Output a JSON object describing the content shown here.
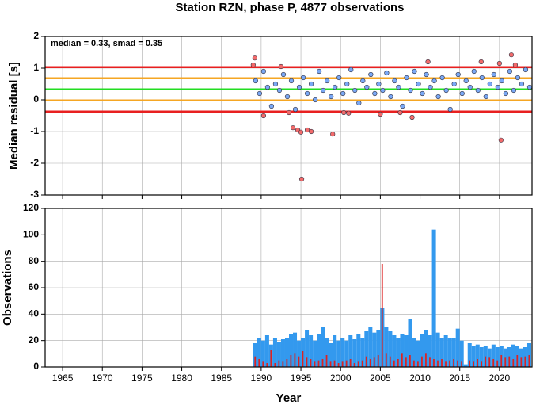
{
  "title": "Station RZN, phase P, 4877 observations",
  "chart_data": [
    {
      "type": "scatter",
      "ylabel": "Median residual [s]",
      "annotation": "median = 0.33, smad = 0.35",
      "xlim": [
        1962.8,
        2024.1
      ],
      "xticks": [
        1965,
        1970,
        1975,
        1980,
        1985,
        1990,
        1995,
        2000,
        2005,
        2010,
        2015,
        2020
      ],
      "ylim": [
        -3,
        2
      ],
      "yticks": [
        -3,
        -2,
        -1,
        0,
        1,
        2
      ],
      "grid": true,
      "reference_lines": [
        {
          "value": 1.03,
          "color": "#e82020"
        },
        {
          "value": -0.37,
          "color": "#e82020"
        },
        {
          "value": 0.68,
          "color": "#f5a623"
        },
        {
          "value": -0.02,
          "color": "#f5a623"
        },
        {
          "value": 0.33,
          "color": "#22dd22"
        }
      ],
      "series": [
        {
          "color": "#7aa8f5",
          "x": [
            1989.3,
            1989.8,
            1990.3,
            1990.8,
            1991.3,
            1991.8,
            1992.3,
            1992.8,
            1993.3,
            1993.8,
            1994.3,
            1994.8,
            1995.3,
            1995.8,
            1996.3,
            1996.8,
            1997.3,
            1997.8,
            1998.3,
            1998.8,
            1999.3,
            1999.8,
            2000.3,
            2000.8,
            2001.3,
            2001.8,
            2002.3,
            2002.8,
            2003.3,
            2003.8,
            2004.3,
            2004.8,
            2005.3,
            2005.8,
            2006.3,
            2006.8,
            2007.3,
            2007.8,
            2008.3,
            2008.8,
            2009.3,
            2009.8,
            2010.3,
            2010.8,
            2011.3,
            2011.8,
            2012.3,
            2012.8,
            2013.3,
            2013.8,
            2014.3,
            2014.8,
            2015.3,
            2015.8,
            2016.3,
            2016.8,
            2017.3,
            2017.8,
            2018.3,
            2018.8,
            2019.3,
            2019.8,
            2020.3,
            2020.8,
            2021.3,
            2021.8,
            2022.3,
            2022.8,
            2023.3,
            2023.8
          ],
          "values": [
            0.6,
            0.2,
            0.9,
            0.4,
            -0.2,
            0.5,
            0.3,
            0.8,
            0.1,
            0.6,
            -0.3,
            0.4,
            0.7,
            0.2,
            0.5,
            0.0,
            0.9,
            0.3,
            0.6,
            0.1,
            0.4,
            0.7,
            0.2,
            0.5,
            0.95,
            0.3,
            -0.1,
            0.6,
            0.4,
            0.8,
            0.2,
            0.5,
            0.3,
            0.85,
            0.1,
            0.6,
            0.4,
            -0.2,
            0.7,
            0.3,
            0.9,
            0.5,
            0.2,
            0.8,
            0.4,
            0.6,
            0.1,
            0.7,
            0.3,
            -0.3,
            0.5,
            0.8,
            0.2,
            0.6,
            0.4,
            0.9,
            0.3,
            0.7,
            0.1,
            0.5,
            0.8,
            0.4,
            0.6,
            0.2,
            0.9,
            0.3,
            0.7,
            0.5,
            0.95,
            0.4
          ]
        },
        {
          "color": "#f26b6b",
          "x": [
            1989.0,
            1989.2,
            1990.3,
            1992.5,
            1993.5,
            1994.0,
            1994.6,
            1995.0,
            1995.1,
            1995.8,
            1996.3,
            1999.0,
            2000.4,
            2001.0,
            2005.0,
            2007.5,
            2009.0,
            2011.0,
            2017.7,
            2020.0,
            2020.2,
            2021.5,
            2022.0
          ],
          "values": [
            1.1,
            1.32,
            -0.5,
            1.05,
            -0.4,
            -0.88,
            -0.95,
            -1.02,
            -2.5,
            -0.95,
            -1.0,
            -1.08,
            -0.4,
            -0.42,
            -0.45,
            -0.4,
            -0.55,
            1.2,
            1.2,
            1.15,
            -1.27,
            1.42,
            1.1
          ]
        }
      ]
    },
    {
      "type": "histogram",
      "ylabel": "Observations",
      "xlabel": "Year",
      "xlim": [
        1962.8,
        2024.1
      ],
      "xticks": [
        1965,
        1970,
        1975,
        1980,
        1985,
        1990,
        1995,
        2000,
        2005,
        2010,
        2015,
        2020
      ],
      "ylim": [
        0,
        120
      ],
      "yticks": [
        0,
        20,
        40,
        60,
        80,
        100,
        120
      ],
      "grid": true,
      "bins": [
        1989,
        1989.5,
        1990,
        1990.5,
        1991,
        1991.5,
        1992,
        1992.5,
        1993,
        1993.5,
        1994,
        1994.5,
        1995,
        1995.5,
        1996,
        1996.5,
        1997,
        1997.5,
        1998,
        1998.5,
        1999,
        1999.5,
        2000,
        2000.5,
        2001,
        2001.5,
        2002,
        2002.5,
        2003,
        2003.5,
        2004,
        2004.5,
        2005,
        2005.5,
        2006,
        2006.5,
        2007,
        2007.5,
        2008,
        2008.5,
        2009,
        2009.5,
        2010,
        2010.5,
        2011,
        2011.5,
        2012,
        2012.5,
        2013,
        2013.5,
        2014,
        2014.5,
        2015,
        2015.5,
        2016,
        2016.5,
        2017,
        2017.5,
        2018,
        2018.5,
        2019,
        2019.5,
        2020,
        2020.5,
        2021,
        2021.5,
        2022,
        2022.5,
        2023,
        2023.5,
        2024
      ],
      "series": [
        {
          "color": "#3399ee",
          "values": [
            18,
            22,
            20,
            24,
            17,
            22,
            19,
            21,
            22,
            25,
            26,
            20,
            22,
            28,
            24,
            20,
            25,
            30,
            22,
            18,
            24,
            20,
            22,
            20,
            24,
            21,
            25,
            22,
            27,
            30,
            26,
            28,
            45,
            30,
            27,
            24,
            22,
            25,
            24,
            36,
            22,
            20,
            25,
            28,
            24,
            104,
            26,
            22,
            24,
            22,
            22,
            29,
            20,
            2,
            18,
            16,
            17,
            15,
            16,
            14,
            17,
            15,
            16,
            14,
            15,
            17,
            16,
            14,
            15,
            18
          ]
        },
        {
          "color": "#dd2222",
          "values": [
            8,
            6,
            4,
            3,
            13,
            3,
            5,
            4,
            6,
            9,
            10,
            8,
            12,
            7,
            6,
            4,
            5,
            6,
            9,
            4,
            5,
            3,
            4,
            5,
            6,
            3,
            4,
            5,
            8,
            6,
            7,
            9,
            78,
            10,
            8,
            5,
            6,
            10,
            7,
            9,
            5,
            4,
            8,
            10,
            7,
            6,
            5,
            6,
            4,
            5,
            6,
            5,
            4,
            0,
            5,
            4,
            6,
            4,
            8,
            7,
            6,
            5,
            9,
            7,
            8,
            6,
            9,
            7,
            8,
            9
          ]
        }
      ]
    }
  ]
}
